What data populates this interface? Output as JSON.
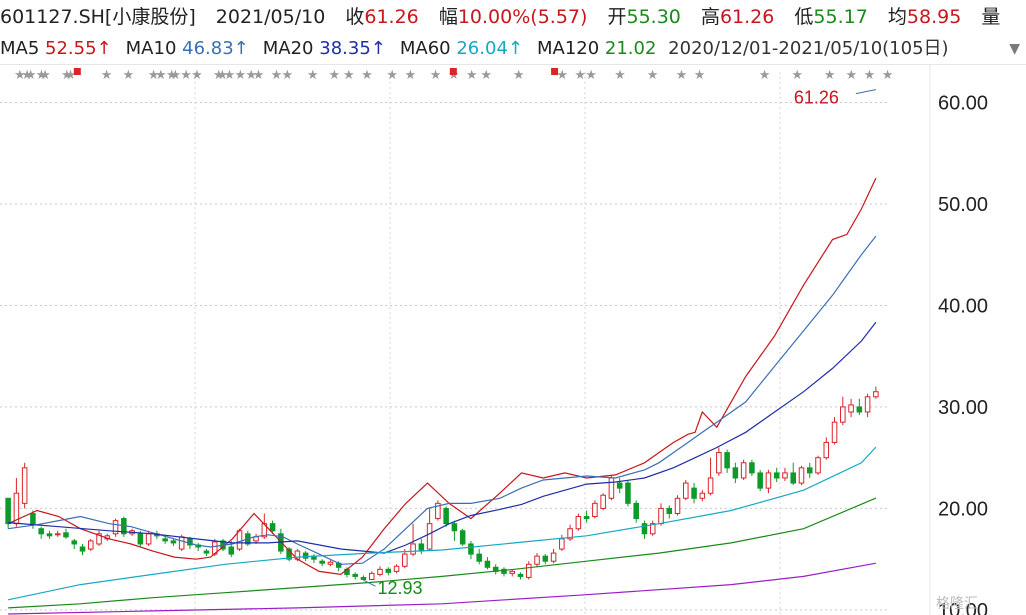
{
  "header": {
    "code": "601127.SH[小康股份]",
    "date": "2021/05/10",
    "close_label": "收",
    "close_value": "61.26",
    "change_label": "幅",
    "change_value": "10.00%(5.57)",
    "open_label": "开",
    "open_value": "55.30",
    "high_label": "高",
    "high_value": "61.26",
    "low_label": "低",
    "low_value": "55.17",
    "avg_label": "均",
    "avg_value": "58.95",
    "vol_label": "量"
  },
  "ma_bar": {
    "items": [
      {
        "label": "MA5",
        "value": "52.55↑",
        "color": "#c8161d"
      },
      {
        "label": "MA10",
        "value": "46.83↑",
        "color": "#3a6fb5"
      },
      {
        "label": "MA20",
        "value": "38.35↑",
        "color": "#1e2ea8"
      },
      {
        "label": "MA60",
        "value": "26.04↑",
        "color": "#16a9c4"
      },
      {
        "label": "MA120",
        "value": "21.02",
        "color": "#1a8a1a"
      }
    ],
    "overlap_text": "2020/12/01-2021/05/10(105日)",
    "dropdown_icon": "triangle-down-icon"
  },
  "chart_data": {
    "type": "candlestick",
    "ylim": [
      10,
      63
    ],
    "yticks": [
      "60.00",
      "50.00",
      "40.00",
      "30.00",
      "20.00",
      "10.00"
    ],
    "annotations": [
      {
        "text": "61.26",
        "value": 61.26,
        "color": "#c8161d"
      },
      {
        "text": "12.93",
        "value": 12.93,
        "color": "#1a8a1a"
      }
    ],
    "candles": [
      [
        21.0,
        18.5,
        21.0,
        18.0
      ],
      [
        18.5,
        21.5,
        23.0,
        18.2
      ],
      [
        20.5,
        24.0,
        24.5,
        20.0
      ],
      [
        19.5,
        18.5,
        19.8,
        18.0
      ],
      [
        18.0,
        17.5,
        18.2,
        17.0
      ],
      [
        17.5,
        17.3,
        17.8,
        17.0
      ],
      [
        17.5,
        17.5,
        17.8,
        17.2
      ],
      [
        17.6,
        17.2,
        18.0,
        17.0
      ],
      [
        16.8,
        16.5,
        17.0,
        16.0
      ],
      [
        16.2,
        15.8,
        16.5,
        15.4
      ],
      [
        16.0,
        16.8,
        17.0,
        15.8
      ],
      [
        16.5,
        17.5,
        17.8,
        16.3
      ],
      [
        17.0,
        17.3,
        17.5,
        16.8
      ],
      [
        17.5,
        18.8,
        19.0,
        17.2
      ],
      [
        19.0,
        17.5,
        19.2,
        17.2
      ],
      [
        17.5,
        17.8,
        18.0,
        17.3
      ],
      [
        17.5,
        16.5,
        17.8,
        16.2
      ],
      [
        16.5,
        17.5,
        17.8,
        16.3
      ],
      [
        17.5,
        17.3,
        17.8,
        17.0
      ],
      [
        17.0,
        16.8,
        17.3,
        16.5
      ],
      [
        16.8,
        16.6,
        17.0,
        16.3
      ],
      [
        16.0,
        17.2,
        17.4,
        15.8
      ],
      [
        17.0,
        16.4,
        17.2,
        16.0
      ],
      [
        16.4,
        16.2,
        16.6,
        15.8
      ],
      [
        15.8,
        15.6,
        16.0,
        15.3
      ],
      [
        15.5,
        16.7,
        17.0,
        15.3
      ],
      [
        16.8,
        16.0,
        17.0,
        15.8
      ],
      [
        16.2,
        15.5,
        16.8,
        15.2
      ],
      [
        16.0,
        17.8,
        18.0,
        15.8
      ],
      [
        17.5,
        16.5,
        17.8,
        16.3
      ],
      [
        16.8,
        17.2,
        17.5,
        16.5
      ],
      [
        17.2,
        18.5,
        19.5,
        17.0
      ],
      [
        18.5,
        17.8,
        18.8,
        17.5
      ],
      [
        17.5,
        15.8,
        18.0,
        15.5
      ],
      [
        16.0,
        15.0,
        16.2,
        14.8
      ],
      [
        15.0,
        15.8,
        16.0,
        14.8
      ],
      [
        15.6,
        15.1,
        15.8,
        14.8
      ],
      [
        15.3,
        15.0,
        15.5,
        14.6
      ],
      [
        14.8,
        14.6,
        15.0,
        14.3
      ],
      [
        14.5,
        14.7,
        14.9,
        14.3
      ],
      [
        14.6,
        14.2,
        14.8,
        13.8
      ],
      [
        14.0,
        13.5,
        14.2,
        13.2
      ],
      [
        13.5,
        13.3,
        13.7,
        13.0
      ],
      [
        13.2,
        13.0,
        13.4,
        12.93
      ],
      [
        13.0,
        13.6,
        13.8,
        12.93
      ],
      [
        13.5,
        14.0,
        14.3,
        13.3
      ],
      [
        14.0,
        13.7,
        14.2,
        13.4
      ],
      [
        13.8,
        14.3,
        14.5,
        13.6
      ],
      [
        14.3,
        15.5,
        16.0,
        14.1
      ],
      [
        15.5,
        16.5,
        18.5,
        15.3
      ],
      [
        16.5,
        15.8,
        17.0,
        15.5
      ],
      [
        16.0,
        18.5,
        20.0,
        15.8
      ],
      [
        19.0,
        20.5,
        20.8,
        18.8
      ],
      [
        20.0,
        18.5,
        20.2,
        18.2
      ],
      [
        18.5,
        17.8,
        18.8,
        16.8
      ],
      [
        17.8,
        16.5,
        18.0,
        16.3
      ],
      [
        16.5,
        15.5,
        16.8,
        15.0
      ],
      [
        15.5,
        14.8,
        16.0,
        14.5
      ],
      [
        14.8,
        14.2,
        15.2,
        14.0
      ],
      [
        14.2,
        13.8,
        14.5,
        13.5
      ],
      [
        14.0,
        13.6,
        14.2,
        13.3
      ],
      [
        13.6,
        13.8,
        14.0,
        13.3
      ],
      [
        13.5,
        13.3,
        13.7,
        13.0
      ],
      [
        13.2,
        14.5,
        14.8,
        13.0
      ],
      [
        14.5,
        15.3,
        15.6,
        14.2
      ],
      [
        15.3,
        14.8,
        15.5,
        14.5
      ],
      [
        14.8,
        15.6,
        16.0,
        14.6
      ],
      [
        16.0,
        17.0,
        17.4,
        15.8
      ],
      [
        17.0,
        18.0,
        18.4,
        16.8
      ],
      [
        18.0,
        19.2,
        19.5,
        17.8
      ],
      [
        19.2,
        19.0,
        19.8,
        18.6
      ],
      [
        19.2,
        20.5,
        20.8,
        19.0
      ],
      [
        20.0,
        21.3,
        21.5,
        19.8
      ],
      [
        21.0,
        23.0,
        23.3,
        20.8
      ],
      [
        22.5,
        22.0,
        23.0,
        21.5
      ],
      [
        22.5,
        20.5,
        22.8,
        20.2
      ],
      [
        20.5,
        19.0,
        20.8,
        18.6
      ],
      [
        18.5,
        17.5,
        18.8,
        17.0
      ],
      [
        17.5,
        18.5,
        18.8,
        17.3
      ],
      [
        18.5,
        20.0,
        20.5,
        18.3
      ],
      [
        20.0,
        19.5,
        20.3,
        19.0
      ],
      [
        19.5,
        21.0,
        21.3,
        19.3
      ],
      [
        21.0,
        22.5,
        22.8,
        20.8
      ],
      [
        22.0,
        21.0,
        22.5,
        20.5
      ],
      [
        21.0,
        21.5,
        21.8,
        20.7
      ],
      [
        21.5,
        23.0,
        25.0,
        21.3
      ],
      [
        23.5,
        25.5,
        26.0,
        23.2
      ],
      [
        25.5,
        24.0,
        25.8,
        23.5
      ],
      [
        24.0,
        23.0,
        24.5,
        22.5
      ],
      [
        23.0,
        24.5,
        24.8,
        22.8
      ],
      [
        24.5,
        23.5,
        24.8,
        23.2
      ],
      [
        23.5,
        22.0,
        23.8,
        21.7
      ],
      [
        22.0,
        23.5,
        23.8,
        21.5
      ],
      [
        23.5,
        23.0,
        24.0,
        22.6
      ],
      [
        23.0,
        23.5,
        24.0,
        22.7
      ],
      [
        23.5,
        22.5,
        24.5,
        22.3
      ],
      [
        22.5,
        24.0,
        24.2,
        22.3
      ],
      [
        24.0,
        23.5,
        24.5,
        23.0
      ],
      [
        23.5,
        25.0,
        25.2,
        23.3
      ],
      [
        25.0,
        26.5,
        27.0,
        24.8
      ],
      [
        26.5,
        28.5,
        29.0,
        26.3
      ],
      [
        28.5,
        30.0,
        31.0,
        28.2
      ],
      [
        29.5,
        30.2,
        30.8,
        29.0
      ],
      [
        30.0,
        29.5,
        30.8,
        29.2
      ],
      [
        29.5,
        31.0,
        31.3,
        29.0
      ],
      [
        31.0,
        31.5,
        32.0,
        30.8
      ]
    ],
    "ma_lines": [
      {
        "name": "MA5",
        "color": "#c8161d",
        "points": [
          [
            0,
            18.5
          ],
          [
            8,
            19.8
          ],
          [
            14,
            19.2
          ],
          [
            20,
            18.0
          ],
          [
            28,
            17.0
          ],
          [
            34,
            16.5
          ],
          [
            40,
            15.8
          ],
          [
            46,
            15.2
          ],
          [
            52,
            15.0
          ],
          [
            56,
            15.2
          ],
          [
            62,
            17.0
          ],
          [
            68,
            19.5
          ],
          [
            72,
            18.0
          ],
          [
            76,
            16.5
          ],
          [
            80,
            15.0
          ],
          [
            86,
            13.8
          ],
          [
            92,
            13.5
          ],
          [
            98,
            15.2
          ],
          [
            104,
            18.0
          ],
          [
            110,
            20.5
          ],
          [
            116,
            22.5
          ],
          [
            122,
            20.5
          ],
          [
            128,
            19.0
          ],
          [
            136,
            21.5
          ],
          [
            142,
            23.5
          ],
          [
            148,
            23.0
          ],
          [
            154,
            23.5
          ],
          [
            160,
            23.0
          ],
          [
            168,
            23.3
          ],
          [
            176,
            24.5
          ],
          [
            180,
            25.5
          ],
          [
            184,
            26.5
          ],
          [
            188,
            27.3
          ],
          [
            190,
            27.5
          ],
          [
            192,
            29.5
          ],
          [
            196,
            28.0
          ],
          [
            204,
            33.0
          ],
          [
            212,
            37.0
          ],
          [
            220,
            42.0
          ],
          [
            228,
            46.5
          ],
          [
            232,
            47.0
          ],
          [
            236,
            49.5
          ],
          [
            240,
            52.55
          ]
        ]
      },
      {
        "name": "MA10",
        "color": "#3a6fb5",
        "points": [
          [
            0,
            18.0
          ],
          [
            8,
            18.4
          ],
          [
            14,
            18.8
          ],
          [
            20,
            19.2
          ],
          [
            28,
            18.5
          ],
          [
            34,
            18.2
          ],
          [
            40,
            17.6
          ],
          [
            46,
            17.0
          ],
          [
            52,
            16.4
          ],
          [
            56,
            16.2
          ],
          [
            62,
            16.5
          ],
          [
            68,
            17.2
          ],
          [
            72,
            17.4
          ],
          [
            76,
            17.2
          ],
          [
            80,
            16.5
          ],
          [
            86,
            15.5
          ],
          [
            92,
            14.5
          ],
          [
            98,
            14.6
          ],
          [
            104,
            16.0
          ],
          [
            110,
            18.0
          ],
          [
            116,
            20.0
          ],
          [
            122,
            20.5
          ],
          [
            128,
            20.5
          ],
          [
            136,
            21.0
          ],
          [
            142,
            22.0
          ],
          [
            148,
            22.8
          ],
          [
            154,
            23.0
          ],
          [
            160,
            23.2
          ],
          [
            168,
            23.0
          ],
          [
            176,
            23.8
          ],
          [
            180,
            24.5
          ],
          [
            184,
            25.5
          ],
          [
            188,
            26.5
          ],
          [
            190,
            27.0
          ],
          [
            192,
            27.5
          ],
          [
            196,
            28.5
          ],
          [
            204,
            30.5
          ],
          [
            212,
            34.0
          ],
          [
            220,
            37.5
          ],
          [
            228,
            41.0
          ],
          [
            232,
            43.0
          ],
          [
            236,
            45.0
          ],
          [
            240,
            46.83
          ]
        ]
      },
      {
        "name": "MA20",
        "color": "#1e2ea8",
        "points": [
          [
            0,
            18.6
          ],
          [
            14,
            18.2
          ],
          [
            28,
            17.8
          ],
          [
            40,
            17.5
          ],
          [
            52,
            17.0
          ],
          [
            62,
            16.6
          ],
          [
            72,
            16.6
          ],
          [
            80,
            16.8
          ],
          [
            92,
            16.0
          ],
          [
            104,
            15.6
          ],
          [
            110,
            16.4
          ],
          [
            116,
            17.4
          ],
          [
            122,
            18.5
          ],
          [
            128,
            19.3
          ],
          [
            136,
            19.9
          ],
          [
            142,
            20.4
          ],
          [
            148,
            21.2
          ],
          [
            154,
            21.8
          ],
          [
            160,
            22.4
          ],
          [
            168,
            22.6
          ],
          [
            176,
            23.0
          ],
          [
            184,
            24.0
          ],
          [
            190,
            25.0
          ],
          [
            196,
            26.0
          ],
          [
            204,
            27.5
          ],
          [
            212,
            29.5
          ],
          [
            220,
            31.5
          ],
          [
            228,
            33.8
          ],
          [
            236,
            36.5
          ],
          [
            240,
            38.35
          ]
        ]
      },
      {
        "name": "MA60",
        "color": "#16a9c4",
        "points": [
          [
            0,
            11.0
          ],
          [
            20,
            12.5
          ],
          [
            40,
            13.5
          ],
          [
            60,
            14.5
          ],
          [
            80,
            15.2
          ],
          [
            100,
            15.6
          ],
          [
            120,
            15.9
          ],
          [
            140,
            16.6
          ],
          [
            160,
            17.3
          ],
          [
            180,
            18.5
          ],
          [
            200,
            19.8
          ],
          [
            220,
            21.8
          ],
          [
            236,
            24.5
          ],
          [
            240,
            26.04
          ]
        ]
      },
      {
        "name": "MA120",
        "color": "#1a8a1a",
        "points": [
          [
            0,
            10.2
          ],
          [
            20,
            10.6
          ],
          [
            40,
            11.2
          ],
          [
            60,
            11.7
          ],
          [
            80,
            12.2
          ],
          [
            100,
            12.7
          ],
          [
            120,
            13.3
          ],
          [
            140,
            14.0
          ],
          [
            160,
            14.8
          ],
          [
            180,
            15.6
          ],
          [
            200,
            16.6
          ],
          [
            220,
            18.0
          ],
          [
            240,
            21.02
          ]
        ]
      },
      {
        "name": "MA250",
        "color": "#9b1fc8",
        "points": [
          [
            0,
            9.6
          ],
          [
            40,
            9.9
          ],
          [
            80,
            10.2
          ],
          [
            120,
            10.6
          ],
          [
            160,
            11.5
          ],
          [
            200,
            12.5
          ],
          [
            220,
            13.3
          ],
          [
            240,
            14.6
          ]
        ]
      }
    ],
    "stars_positions": [
      3,
      5,
      6,
      9,
      10,
      16,
      17,
      27,
      33,
      40,
      42,
      45,
      46,
      49,
      52,
      58,
      59,
      61,
      64,
      67,
      69,
      74,
      77,
      84,
      90,
      94,
      99,
      106,
      111,
      118,
      123,
      128,
      132,
      141,
      153,
      158,
      161,
      169,
      178,
      186,
      191,
      209,
      218,
      227,
      233,
      238,
      243
    ],
    "flag_positions": [
      19,
      123,
      151
    ]
  }
}
